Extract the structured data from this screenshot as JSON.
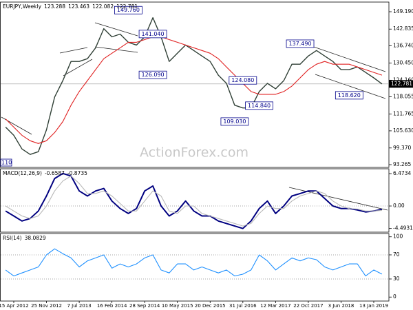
{
  "chart_data": [
    {
      "type": "line",
      "title": "EURJPY,Weekly",
      "ohlc": [
        123.288,
        123.463,
        122.082,
        122.781
      ],
      "categories": [
        null,
        "15 Apr 2012",
        null,
        null,
        null,
        "25 Nov 2012",
        null,
        null,
        null,
        "7 Jul 2013",
        null,
        null,
        null,
        "16 Feb 2014",
        null,
        null,
        null,
        "28 Sep 2014",
        null,
        null,
        null,
        "10 May 2015",
        null,
        null,
        null,
        "20 Dec 2015",
        null,
        null,
        null,
        "31 Jul 2016",
        null,
        null,
        null,
        "12 Mar 2017",
        null,
        null,
        null,
        "22 Oct 2017",
        null,
        null,
        null,
        "3 Jun 2018",
        null,
        null,
        null,
        "13 Jan 2019",
        null
      ],
      "series": [
        {
          "color": "#2f3f35",
          "values": [
            107,
            104,
            99,
            97,
            98,
            106,
            118,
            124,
            131,
            131,
            132,
            136,
            143,
            140,
            141,
            138,
            137,
            140,
            147,
            140,
            131,
            134,
            137,
            135,
            133,
            131,
            126,
            123,
            115,
            114,
            114,
            120,
            123,
            121,
            124,
            130,
            130,
            133,
            135,
            133,
            131,
            128,
            128,
            129,
            127,
            125,
            122.781
          ]
        },
        {
          "color": "#e02020",
          "values": [
            110,
            107,
            104,
            102,
            101,
            102,
            105,
            109,
            115,
            120,
            124,
            128,
            132,
            134,
            136,
            138,
            138,
            139,
            140,
            140,
            139,
            138,
            137,
            136,
            135,
            134,
            132,
            129,
            126,
            123,
            120,
            119,
            119,
            119,
            120,
            122,
            125,
            128,
            130,
            131,
            130,
            130,
            130,
            129,
            128,
            127,
            126
          ]
        }
      ],
      "ylim": [
        92.26,
        152.72
      ],
      "yticks": [
        {
          "value": 149.19,
          "label": "149.190"
        },
        {
          "value": 142.835,
          "label": "142.835"
        },
        {
          "value": 136.74,
          "label": "136.740"
        },
        {
          "value": 130.45,
          "label": "130.450"
        },
        {
          "value": 124.16,
          "label": "124.160"
        },
        {
          "value": 118.055,
          "label": "118.055"
        },
        {
          "value": 111.765,
          "label": "111.765"
        },
        {
          "value": 105.63,
          "label": "105.630"
        },
        {
          "value": 99.37,
          "label": "99.370"
        },
        {
          "value": 93.265,
          "label": "93.265"
        }
      ],
      "annotations": [
        {
          "value": 149.76,
          "label": "149.760",
          "x": 15
        },
        {
          "value": 141.04,
          "label": "141.040",
          "x": 18
        },
        {
          "value": 126.09,
          "label": "126.090",
          "x": 18
        },
        {
          "value": 124.08,
          "label": "124.080",
          "x": 29
        },
        {
          "value": 114.84,
          "label": "114.840",
          "x": 31
        },
        {
          "value": 109.03,
          "label": "109.030",
          "x": 28
        },
        {
          "value": 137.49,
          "label": "137.490",
          "x": 36
        },
        {
          "value": 118.62,
          "label": "118.620",
          "x": 42
        }
      ],
      "clipped_label": "110",
      "watermark": "ActionForex.com"
    },
    {
      "type": "line",
      "title": "MACD(12,26,9)",
      "series": [
        {
          "color": "#000080",
          "values": [
            -1,
            -2,
            -3,
            -2.5,
            -1,
            2,
            5.5,
            6.5,
            6,
            3,
            2,
            3,
            3.5,
            1,
            -0.5,
            -1.5,
            -0.5,
            3,
            4,
            0,
            -2,
            -1,
            1,
            -1,
            -2,
            -2,
            -3,
            -3.5,
            -4,
            -4.5,
            -3,
            -0.5,
            1,
            -1.5,
            0,
            2,
            2.5,
            3,
            3,
            1.5,
            0,
            -0.5,
            -0.5,
            -0.8,
            -1.2,
            -1,
            -0.6587
          ]
        },
        {
          "color": "#b8b8b8",
          "values": [
            0,
            -1,
            -2,
            -2.5,
            -2,
            0,
            3,
            5,
            6,
            4.5,
            2.5,
            2.5,
            3,
            2,
            0.5,
            -1,
            -1,
            1,
            3,
            2,
            -1,
            -1.5,
            0,
            0,
            -1.5,
            -2,
            -2.5,
            -3,
            -3.5,
            -4,
            -3.5,
            -1.5,
            0,
            -0.5,
            -0.5,
            1,
            2,
            2.5,
            3,
            2.5,
            1,
            0,
            -0.5,
            -0.6,
            -1,
            -1,
            -0.8735
          ]
        }
      ],
      "ylim": [
        -5.23,
        7.44
      ],
      "yticks": [
        6.4734,
        {
          "value": 0,
          "label": "0.00"
        },
        -4.4931
      ],
      "levels": [
        0
      ]
    },
    {
      "type": "line",
      "title": "RSI(14)",
      "series": [
        {
          "color": "#1e90ff",
          "values": [
            45,
            35,
            40,
            45,
            50,
            70,
            80,
            72,
            65,
            50,
            60,
            65,
            70,
            48,
            55,
            50,
            55,
            65,
            70,
            45,
            40,
            55,
            55,
            45,
            50,
            45,
            40,
            45,
            35,
            38,
            45,
            70,
            60,
            45,
            55,
            65,
            60,
            65,
            62,
            50,
            45,
            50,
            55,
            55,
            35,
            45,
            38.0829
          ]
        }
      ],
      "ylim": [
        -6.6,
        105.4
      ],
      "yticks": [
        100,
        70,
        30,
        0
      ],
      "levels": [
        70,
        30
      ]
    }
  ]
}
